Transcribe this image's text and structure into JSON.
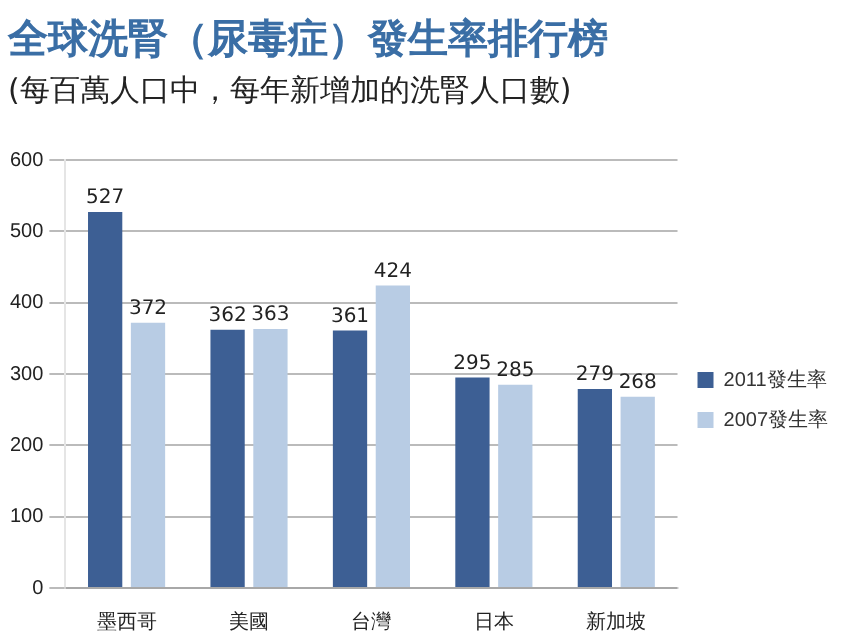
{
  "chart_data": {
    "type": "bar",
    "title": "全球洗腎（尿毒症）發生率排行榜",
    "subtitle": "(每百萬人口中，每年新增加的洗腎人口數)",
    "categories": [
      "墨西哥",
      "美國",
      "台灣",
      "日本",
      "新加坡"
    ],
    "series": [
      {
        "name": "2011發生率",
        "color": "#3d5f94",
        "values": [
          527,
          362,
          361,
          295,
          279
        ]
      },
      {
        "name": "2007發生率",
        "color": "#b8cce4",
        "values": [
          372,
          363,
          424,
          285,
          268
        ]
      }
    ],
    "ylim": [
      0,
      600
    ],
    "yticks": [
      0,
      100,
      200,
      300,
      400,
      500,
      600
    ],
    "grid": "y",
    "legend": "right",
    "data_labels": true
  }
}
